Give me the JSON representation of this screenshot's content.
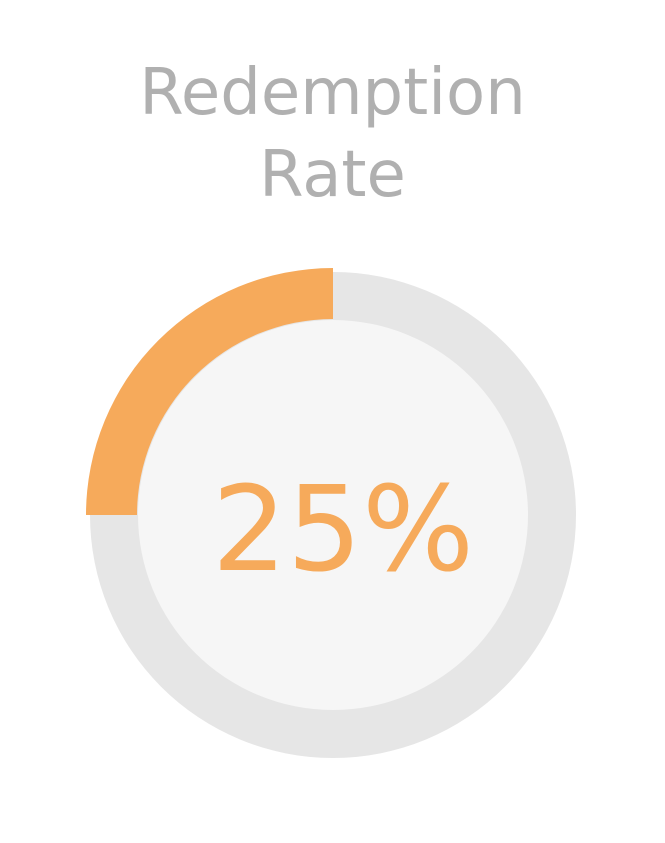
{
  "chart_data": {
    "type": "pie",
    "title_lines": [
      "Redemption",
      "Rate"
    ],
    "value_percent": 25,
    "value_label": "25%",
    "colors": {
      "progress": "#f6aa5b",
      "track": "#e6e6e6",
      "inner": "#f6f6f6",
      "title": "#b0b0b0",
      "value_text": "#f6aa5b"
    }
  }
}
